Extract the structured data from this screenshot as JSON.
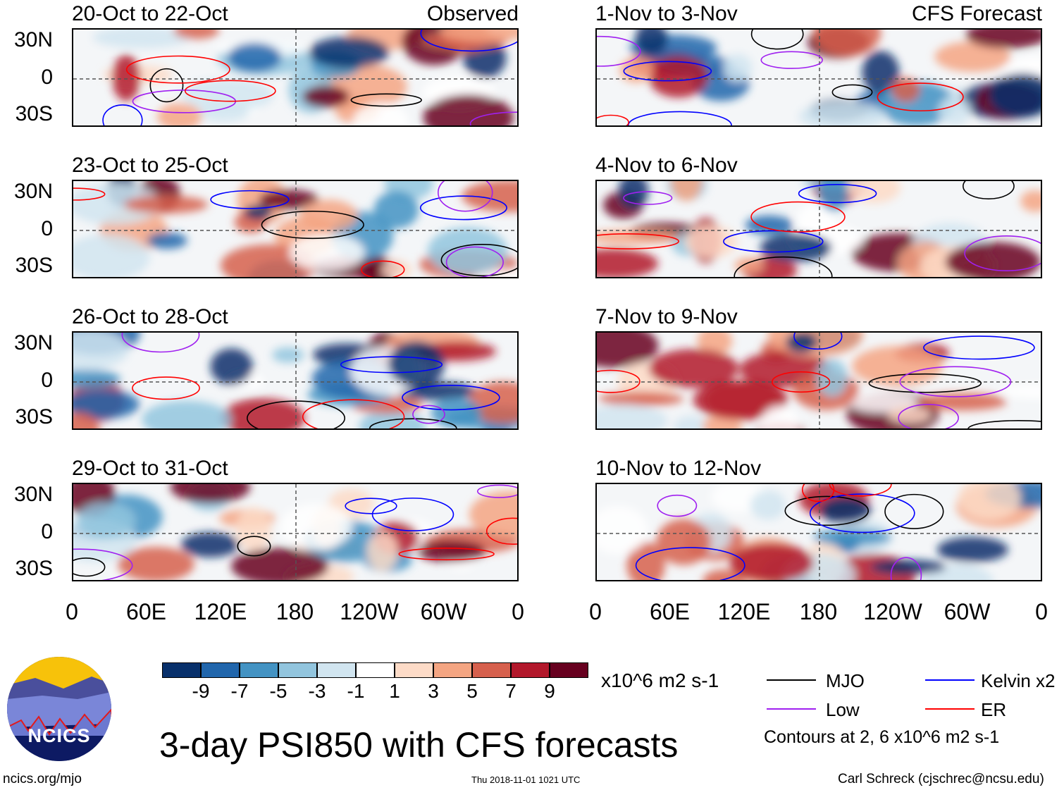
{
  "chart_data": {
    "type": "heatmap",
    "title": "3-day PSI850 with CFS forecasts",
    "units": "x10^6 m2 s-1",
    "colorbar": {
      "ticks": [
        "-9",
        "-7",
        "-5",
        "-3",
        "-1",
        "1",
        "3",
        "5",
        "7",
        "9"
      ],
      "colors": [
        "#08306b",
        "#2166ac",
        "#4393c3",
        "#92c5de",
        "#d1e5f0",
        "#ffffff",
        "#fddbc7",
        "#f4a582",
        "#d6604d",
        "#b2182b",
        "#67001f"
      ]
    },
    "x_ticks": [
      "0",
      "60E",
      "120E",
      "180",
      "120W",
      "60W",
      "0"
    ],
    "y_ticks": [
      "30N",
      "0",
      "30S"
    ],
    "columns": [
      {
        "label": "Observed",
        "panels": [
          "20-Oct to 22-Oct",
          "23-Oct to 25-Oct",
          "26-Oct to 28-Oct",
          "29-Oct to 31-Oct"
        ]
      },
      {
        "label": "CFS Forecast",
        "panels": [
          "1-Nov to 3-Nov",
          "4-Nov to 6-Nov",
          "7-Nov to 9-Nov",
          "10-Nov to 12-Nov"
        ]
      }
    ],
    "legend": [
      {
        "name": "MJO",
        "color": "#000000"
      },
      {
        "name": "Kelvin x2",
        "color": "#0000ff"
      },
      {
        "name": "Low",
        "color": "#a020f0"
      },
      {
        "name": "ER",
        "color": "#ff0000"
      }
    ],
    "contour_note": "Contours at 2, 6 x10^6 m2 s-1"
  },
  "footer": {
    "logo_text": "NCICS",
    "url": "ncics.org/mjo",
    "timestamp": "Thu 2018-11-01 1021 UTC",
    "author": "Carl Schreck (cjschrec@ncsu.edu)"
  }
}
